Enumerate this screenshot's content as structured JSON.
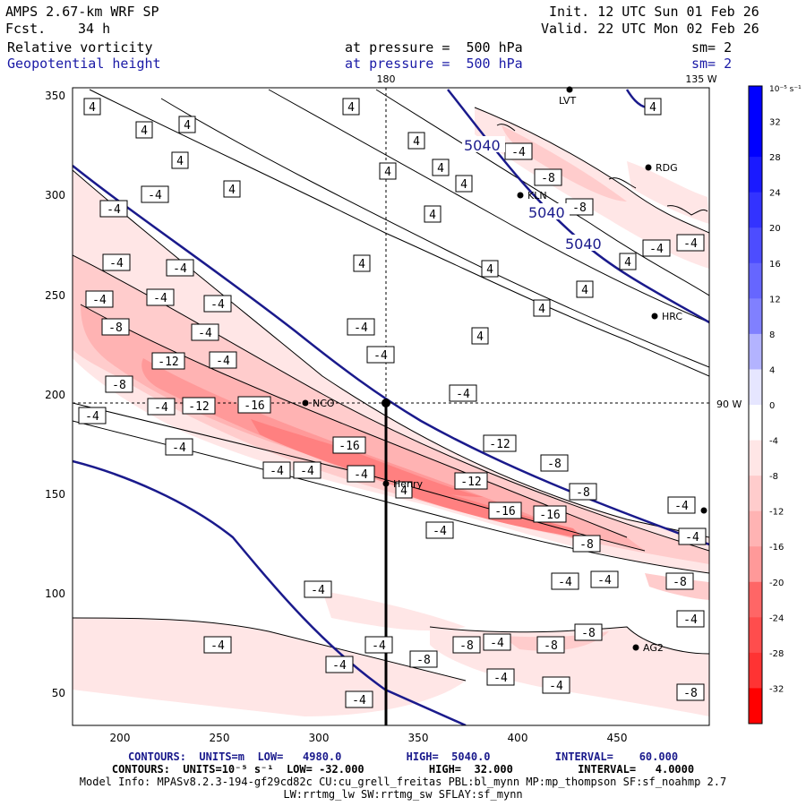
{
  "header": {
    "model": "AMPS 2.67-km WRF SP",
    "forecast_label": "Fcst.",
    "forecast_value": "34 h",
    "init": "Init. 12 UTC Sun 01 Feb 26",
    "valid": "Valid. 22 UTC Mon 02 Feb 26",
    "field1_name": "Relative vorticity",
    "field1_level": "at pressure =  500 hPa",
    "field1_smooth": "sm= 2",
    "field2_name": "Geopotential height",
    "field2_level": "at pressure =  500 hPa",
    "field2_smooth": "sm= 2"
  },
  "map": {
    "lon_label_top_1": "180",
    "lon_label_top_2": "135 W",
    "lat_label_right": "90 W",
    "x_ticks": [
      "200",
      "250",
      "300",
      "350",
      "400",
      "450"
    ],
    "y_ticks": [
      "350",
      "300",
      "250",
      "200",
      "150",
      "100",
      "50"
    ],
    "stations": [
      {
        "name": "LVT"
      },
      {
        "name": "RDG"
      },
      {
        "name": "KLN"
      },
      {
        "name": "HRC"
      },
      {
        "name": "NCO"
      },
      {
        "name": "Henry"
      },
      {
        "name": "AG2"
      }
    ],
    "height_contours": [
      {
        "label": "5040"
      },
      {
        "label": "5040"
      },
      {
        "label": "5040"
      }
    ],
    "vort_labels": [
      "4",
      "-4",
      "-8",
      "-12",
      "-16"
    ]
  },
  "colorbar": {
    "unit": "10⁻⁵ s⁻¹",
    "labels": [
      "32",
      "28",
      "24",
      "20",
      "16",
      "12",
      "8",
      "4",
      "0",
      "-4",
      "-8",
      "-12",
      "-16",
      "-20",
      "-24",
      "-28",
      "-32"
    ],
    "colors": [
      "#0000ff",
      "#1a1aff",
      "#3333ff",
      "#4d4dff",
      "#6666ff",
      "#8080ff",
      "#b3b3ff",
      "#e6e6ff",
      "#ffffff",
      "#ffe6e6",
      "#ffcccc",
      "#ffb3b3",
      "#ff9999",
      "#ff6666",
      "#ff4d4d",
      "#ff3333",
      "#ff0000"
    ]
  },
  "footer": {
    "line1": "CONTOURS:  UNITS=m  LOW=   4980.0          HIGH=  5040.0          INTERVAL=    60.000",
    "line2": "CONTOURS:  UNITS=10⁻⁵ s⁻¹  LOW= -32.000          HIGH=  32.000          INTERVAL=   4.0000",
    "line3": "Model Info: MPASv8.2.3-194-gf29cd82c CU:cu_grell_freitas PBL:bl_mynn MP:mp_thompson SF:sf_noahmp 2.7",
    "line4": "LW:rrtmg_lw SW:rrtmg_sw SFLAY:sf_mynn"
  }
}
